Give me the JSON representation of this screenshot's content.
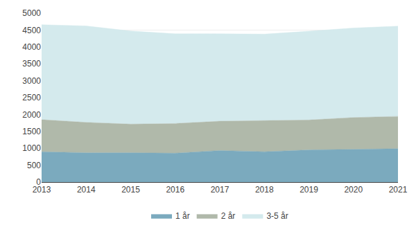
{
  "chart_data": {
    "type": "area",
    "stacked": true,
    "x": [
      2013,
      2014,
      2015,
      2016,
      2017,
      2018,
      2019,
      2020,
      2021
    ],
    "series": [
      {
        "name": "1 år",
        "color": "#7baabe",
        "values": [
          898,
          866,
          868,
          854,
          934,
          899,
          951,
          974,
          987
        ]
      },
      {
        "name": "2 år",
        "color": "#b0b9aa",
        "values": [
          949,
          900,
          847,
          879,
          867,
          924,
          886,
          936,
          957
        ]
      },
      {
        "name": "3-5 år",
        "color": "#d4eaed",
        "values": [
          2811,
          2855,
          2756,
          2656,
          2587,
          2556,
          2628,
          2650,
          2670
        ]
      }
    ],
    "xlim": [
      2013,
      2021
    ],
    "xticks": [
      2013,
      2014,
      2015,
      2016,
      2017,
      2018,
      2019,
      2020,
      2021
    ],
    "ylim": [
      0,
      5000
    ],
    "yticks": [
      0,
      500,
      1000,
      1500,
      2000,
      2500,
      3000,
      3500,
      4000,
      4500,
      5000
    ],
    "grid": true,
    "legend": "bottom"
  }
}
